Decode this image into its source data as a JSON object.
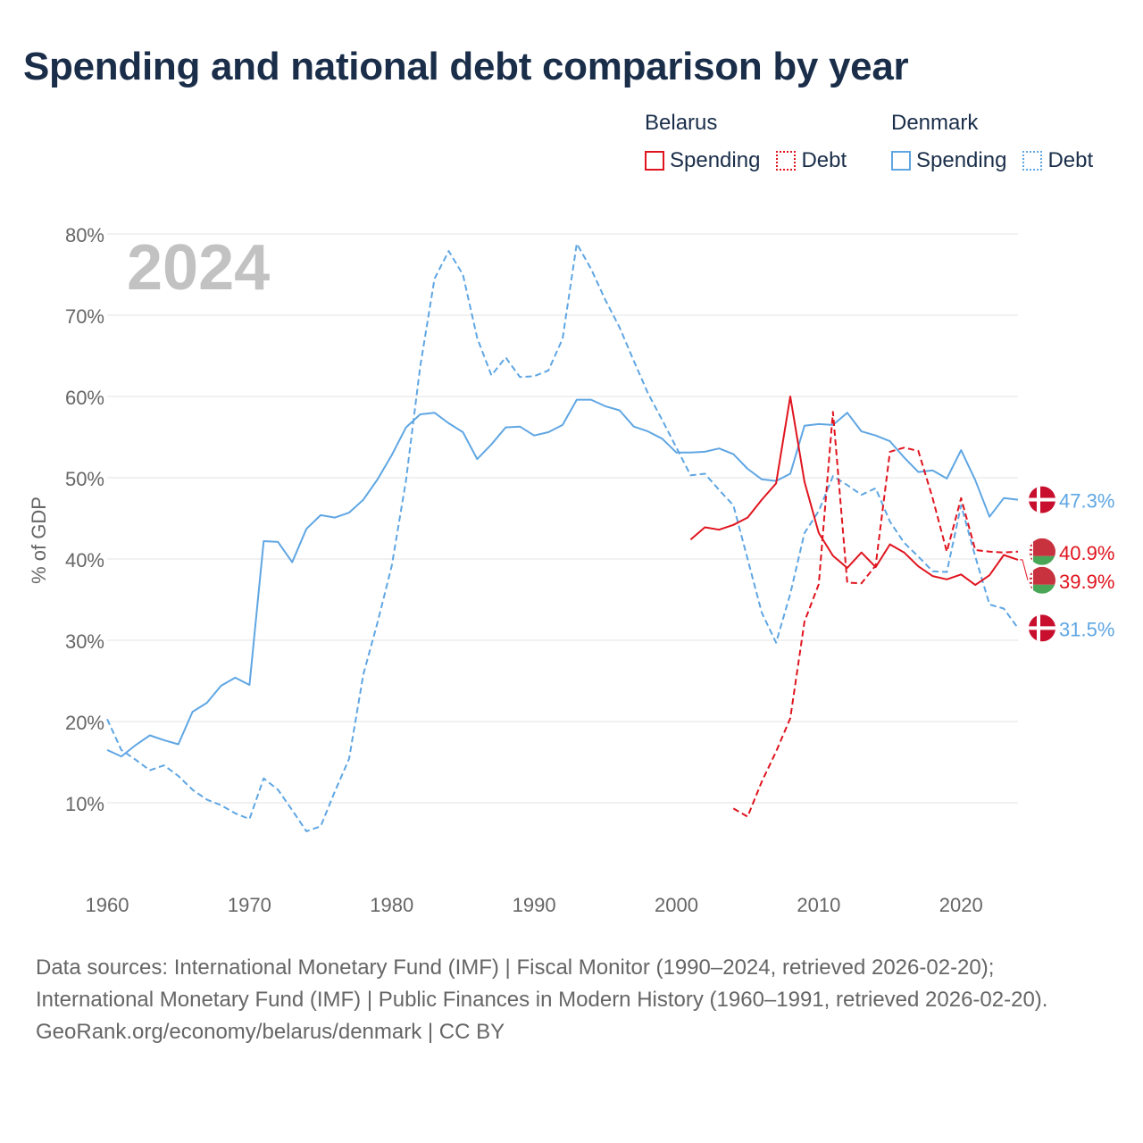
{
  "title": "Spending and national debt comparison by year",
  "legend": {
    "countries": [
      {
        "name": "Belarus",
        "color": "#e0141e",
        "items": [
          "Spending",
          "Debt"
        ]
      },
      {
        "name": "Denmark",
        "color": "#5fa6e3",
        "items": [
          "Spending",
          "Debt"
        ]
      }
    ]
  },
  "footer": {
    "sources": "Data sources: International Monetary Fund (IMF) | Fiscal Monitor (1990–2024, retrieved 2026-02-20); International Monetary Fund (IMF) | Public Finances in Modern History (1960–1991, retrieved 2026-02-20).",
    "credit": "GeoRank.org/economy/belarus/denmark | CC BY"
  },
  "chart_data": {
    "type": "line",
    "title": "Spending and national debt comparison by year",
    "year_overlay": "2024",
    "xlabel": "",
    "ylabel": "% of GDP",
    "xlim": [
      1960,
      2024
    ],
    "ylim": [
      0,
      80
    ],
    "x_ticks": [
      1960,
      1970,
      1980,
      1990,
      2000,
      2010,
      2020
    ],
    "y_ticks": [
      10,
      20,
      30,
      40,
      50,
      60,
      70,
      80
    ],
    "y_tick_labels": [
      "10%",
      "20%",
      "30%",
      "40%",
      "50%",
      "60%",
      "70%",
      "80%"
    ],
    "grid": true,
    "series": [
      {
        "name": "Denmark Spending",
        "country": "Denmark",
        "metric": "Spending",
        "color": "#5fa6e3",
        "style": "solid",
        "end_label": "47.3%",
        "flag": "denmark",
        "points": [
          [
            1960,
            16.5
          ],
          [
            1961,
            15.7
          ],
          [
            1962,
            17.1
          ],
          [
            1963,
            18.3
          ],
          [
            1964,
            17.7
          ],
          [
            1965,
            17.2
          ],
          [
            1966,
            21.2
          ],
          [
            1967,
            22.3
          ],
          [
            1968,
            24.4
          ],
          [
            1969,
            25.4
          ],
          [
            1970,
            24.5
          ],
          [
            1971,
            42.2
          ],
          [
            1972,
            42.1
          ],
          [
            1973,
            39.6
          ],
          [
            1974,
            43.7
          ],
          [
            1975,
            45.4
          ],
          [
            1976,
            45.1
          ],
          [
            1977,
            45.7
          ],
          [
            1978,
            47.3
          ],
          [
            1979,
            49.8
          ],
          [
            1980,
            52.8
          ],
          [
            1981,
            56.2
          ],
          [
            1982,
            57.8
          ],
          [
            1983,
            58.0
          ],
          [
            1984,
            56.7
          ],
          [
            1985,
            55.6
          ],
          [
            1986,
            52.3
          ],
          [
            1987,
            54.1
          ],
          [
            1988,
            56.2
          ],
          [
            1989,
            56.3
          ],
          [
            1990,
            55.2
          ],
          [
            1991,
            55.6
          ],
          [
            1992,
            56.5
          ],
          [
            1993,
            59.6
          ],
          [
            1994,
            59.6
          ],
          [
            1995,
            58.8
          ],
          [
            1996,
            58.3
          ],
          [
            1997,
            56.3
          ],
          [
            1998,
            55.7
          ],
          [
            1999,
            54.8
          ],
          [
            2000,
            53.1
          ],
          [
            2001,
            53.1
          ],
          [
            2002,
            53.2
          ],
          [
            2003,
            53.6
          ],
          [
            2004,
            52.9
          ],
          [
            2005,
            51.1
          ],
          [
            2006,
            49.8
          ],
          [
            2007,
            49.6
          ],
          [
            2008,
            50.5
          ],
          [
            2009,
            56.4
          ],
          [
            2010,
            56.6
          ],
          [
            2011,
            56.5
          ],
          [
            2012,
            58.0
          ],
          [
            2013,
            55.7
          ],
          [
            2014,
            55.2
          ],
          [
            2015,
            54.5
          ],
          [
            2016,
            52.5
          ],
          [
            2017,
            50.7
          ],
          [
            2018,
            50.9
          ],
          [
            2019,
            49.9
          ],
          [
            2020,
            53.4
          ],
          [
            2021,
            49.7
          ],
          [
            2022,
            45.2
          ],
          [
            2023,
            47.5
          ],
          [
            2024,
            47.3
          ]
        ]
      },
      {
        "name": "Denmark Debt",
        "country": "Denmark",
        "metric": "Debt",
        "color": "#5fa6e3",
        "style": "dashed",
        "end_label": "31.5%",
        "flag": "denmark",
        "points": [
          [
            1960,
            20.3
          ],
          [
            1961,
            16.5
          ],
          [
            1962,
            15.3
          ],
          [
            1963,
            14.0
          ],
          [
            1964,
            14.6
          ],
          [
            1965,
            13.3
          ],
          [
            1966,
            11.6
          ],
          [
            1967,
            10.4
          ],
          [
            1968,
            9.7
          ],
          [
            1969,
            8.7
          ],
          [
            1970,
            8.0
          ],
          [
            1971,
            13.0
          ],
          [
            1972,
            11.6
          ],
          [
            1973,
            9.1
          ],
          [
            1974,
            6.5
          ],
          [
            1975,
            7.1
          ],
          [
            1976,
            11.4
          ],
          [
            1977,
            15.4
          ],
          [
            1978,
            25.8
          ],
          [
            1979,
            32.2
          ],
          [
            1980,
            39.2
          ],
          [
            1981,
            49.7
          ],
          [
            1982,
            63.7
          ],
          [
            1983,
            74.5
          ],
          [
            1984,
            77.9
          ],
          [
            1985,
            75.0
          ],
          [
            1986,
            67.2
          ],
          [
            1987,
            62.6
          ],
          [
            1988,
            64.8
          ],
          [
            1989,
            62.4
          ],
          [
            1990,
            62.5
          ],
          [
            1991,
            63.2
          ],
          [
            1992,
            67.1
          ],
          [
            1993,
            78.8
          ],
          [
            1994,
            75.7
          ],
          [
            1995,
            71.9
          ],
          [
            1996,
            68.5
          ],
          [
            1997,
            64.4
          ],
          [
            1998,
            60.4
          ],
          [
            1999,
            57.1
          ],
          [
            2000,
            53.7
          ],
          [
            2001,
            50.3
          ],
          [
            2002,
            50.5
          ],
          [
            2003,
            48.5
          ],
          [
            2004,
            46.6
          ],
          [
            2005,
            40.0
          ],
          [
            2006,
            33.4
          ],
          [
            2007,
            29.7
          ],
          [
            2008,
            35.7
          ],
          [
            2009,
            43.2
          ],
          [
            2010,
            45.9
          ],
          [
            2011,
            50.2
          ],
          [
            2012,
            49.1
          ],
          [
            2013,
            47.9
          ],
          [
            2014,
            48.7
          ],
          [
            2015,
            44.6
          ],
          [
            2016,
            42.0
          ],
          [
            2017,
            40.3
          ],
          [
            2018,
            38.5
          ],
          [
            2019,
            38.4
          ],
          [
            2020,
            46.6
          ],
          [
            2021,
            40.3
          ],
          [
            2022,
            34.4
          ],
          [
            2023,
            33.9
          ],
          [
            2024,
            31.5
          ]
        ]
      },
      {
        "name": "Belarus Spending",
        "country": "Belarus",
        "metric": "Spending",
        "color": "#e0141e",
        "style": "solid",
        "end_label": "39.9%",
        "flag": "belarus",
        "points": [
          [
            2001,
            42.4
          ],
          [
            2002,
            43.9
          ],
          [
            2003,
            43.6
          ],
          [
            2004,
            44.2
          ],
          [
            2005,
            45.1
          ],
          [
            2006,
            47.3
          ],
          [
            2007,
            49.3
          ],
          [
            2008,
            60.0
          ],
          [
            2009,
            49.5
          ],
          [
            2010,
            43.2
          ],
          [
            2011,
            40.4
          ],
          [
            2012,
            38.9
          ],
          [
            2013,
            40.8
          ],
          [
            2014,
            39.0
          ],
          [
            2015,
            41.8
          ],
          [
            2016,
            40.8
          ],
          [
            2017,
            39.1
          ],
          [
            2018,
            37.9
          ],
          [
            2019,
            37.5
          ],
          [
            2020,
            38.1
          ],
          [
            2021,
            36.8
          ],
          [
            2022,
            38.0
          ],
          [
            2023,
            40.5
          ],
          [
            2024,
            39.9
          ]
        ]
      },
      {
        "name": "Belarus Debt",
        "country": "Belarus",
        "metric": "Debt",
        "color": "#e0141e",
        "style": "dashed",
        "end_label": "40.9%",
        "flag": "belarus",
        "points": [
          [
            2004,
            9.3
          ],
          [
            2005,
            8.3
          ],
          [
            2006,
            12.6
          ],
          [
            2007,
            16.3
          ],
          [
            2008,
            20.4
          ],
          [
            2009,
            32.3
          ],
          [
            2010,
            36.9
          ],
          [
            2011,
            58.1
          ],
          [
            2012,
            37.1
          ],
          [
            2013,
            37.0
          ],
          [
            2014,
            39.2
          ],
          [
            2015,
            53.2
          ],
          [
            2016,
            53.7
          ],
          [
            2017,
            53.3
          ],
          [
            2018,
            47.5
          ],
          [
            2019,
            40.9
          ],
          [
            2020,
            47.5
          ],
          [
            2021,
            41.1
          ],
          [
            2022,
            40.9
          ],
          [
            2023,
            40.8
          ],
          [
            2024,
            40.9
          ]
        ]
      }
    ]
  }
}
